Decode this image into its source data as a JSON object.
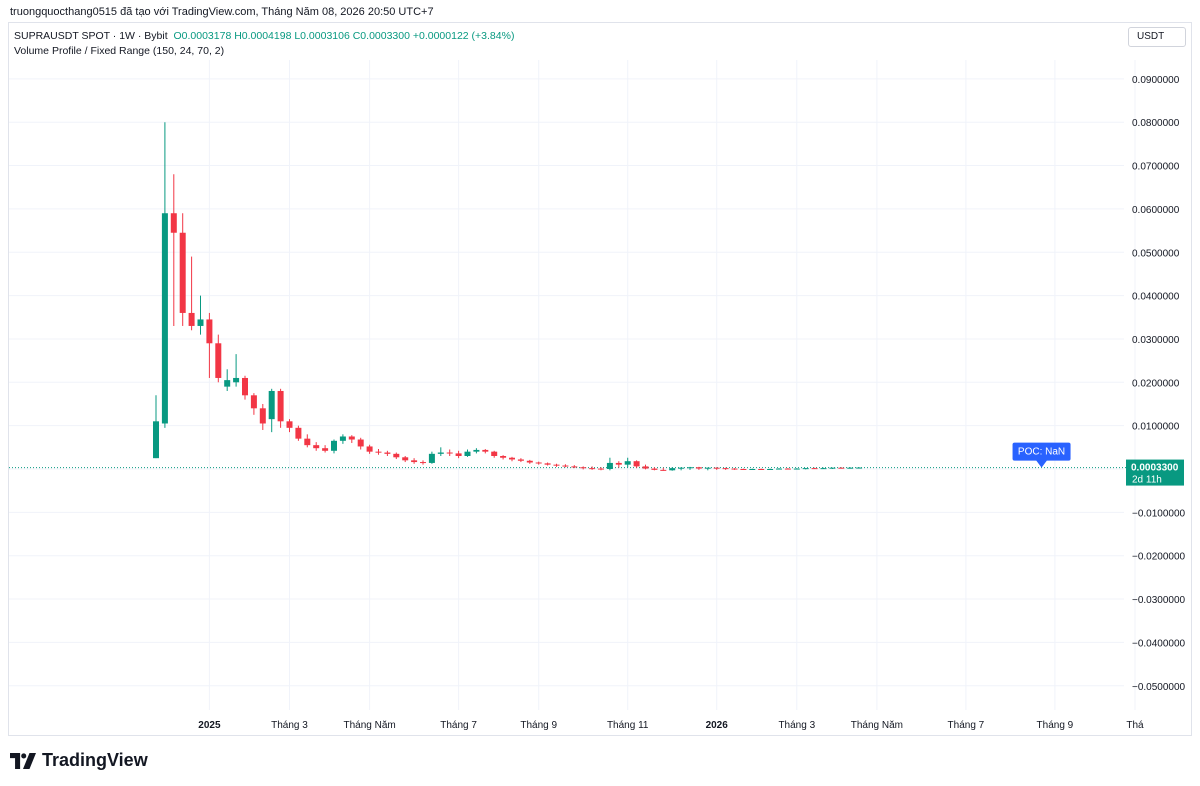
{
  "header": {
    "text": "truongquocthang0515 đã tạo với TradingView.com, Tháng Năm 08, 2026 20:50 UTC+7"
  },
  "legend": {
    "symbol": "SUPRAUSDT SPOT · 1W · Bybit",
    "ohlc": "O0.0003178  H0.0004198  L0.0003106  C0.0003300  +0.0000122 (+3.84%)",
    "indicator": "Volume Profile / Fixed Range (150, 24, 70, 2)"
  },
  "currency": "USDT",
  "footer": {
    "brand": "TradingView"
  },
  "colors": {
    "up": "#089981",
    "down": "#f23645",
    "grid": "#f0f3fa",
    "price_line": "#089981",
    "poc": "#2962ff"
  },
  "chart_data": {
    "type": "candlestick",
    "y_axis": {
      "ticks": [
        0.09,
        0.08,
        0.07,
        0.06,
        0.05,
        0.04,
        0.03,
        0.02,
        0.01,
        0,
        -0.01,
        -0.02,
        -0.03,
        -0.04,
        -0.05
      ],
      "tick_labels": [
        "0.0900000",
        "0.0800000",
        "0.0700000",
        "0.0600000",
        "0.0500000",
        "0.0400000",
        "0.0300000",
        "0.0200000",
        "0.0100000",
        "",
        "−0.0100000",
        "−0.0200000",
        "−0.0300000",
        "−0.0400000",
        "−0.0500000"
      ],
      "position": "right"
    },
    "x_axis": {
      "labels": [
        {
          "text": "2025",
          "bar": 6,
          "bold": true
        },
        {
          "text": "Tháng 3",
          "bar": 15
        },
        {
          "text": "Tháng Năm",
          "bar": 24
        },
        {
          "text": "Tháng 7",
          "bar": 34
        },
        {
          "text": "Tháng 9",
          "bar": 43
        },
        {
          "text": "Tháng 11",
          "bar": 53
        },
        {
          "text": "2026",
          "bar": 63,
          "bold": true
        },
        {
          "text": "Tháng 3",
          "bar": 72
        },
        {
          "text": "Tháng Năm",
          "bar": 81
        },
        {
          "text": "Tháng 7",
          "bar": 91
        },
        {
          "text": "Tháng 9",
          "bar": 101
        },
        {
          "text": "Thá",
          "bar": 110
        }
      ]
    },
    "last_price": {
      "label": "0.0003300",
      "countdown": "2d 11h",
      "value": 0.00033
    },
    "poc_label": "POC: NaN",
    "poc_bar": 99.5,
    "candles": [
      {
        "o": 0.0025,
        "h": 0.017,
        "l": 0.0025,
        "c": 0.011
      },
      {
        "o": 0.0105,
        "h": 0.08,
        "l": 0.0095,
        "c": 0.059
      },
      {
        "o": 0.059,
        "h": 0.068,
        "l": 0.033,
        "c": 0.0545
      },
      {
        "o": 0.0545,
        "h": 0.059,
        "l": 0.033,
        "c": 0.036
      },
      {
        "o": 0.036,
        "h": 0.049,
        "l": 0.032,
        "c": 0.033
      },
      {
        "o": 0.033,
        "h": 0.04,
        "l": 0.031,
        "c": 0.0345
      },
      {
        "o": 0.0345,
        "h": 0.036,
        "l": 0.021,
        "c": 0.029
      },
      {
        "o": 0.029,
        "h": 0.031,
        "l": 0.02,
        "c": 0.021
      },
      {
        "o": 0.019,
        "h": 0.023,
        "l": 0.018,
        "c": 0.0205
      },
      {
        "o": 0.02,
        "h": 0.0265,
        "l": 0.019,
        "c": 0.021
      },
      {
        "o": 0.021,
        "h": 0.0215,
        "l": 0.016,
        "c": 0.017
      },
      {
        "o": 0.017,
        "h": 0.0175,
        "l": 0.0125,
        "c": 0.014
      },
      {
        "o": 0.014,
        "h": 0.015,
        "l": 0.009,
        "c": 0.0105
      },
      {
        "o": 0.0115,
        "h": 0.0185,
        "l": 0.0085,
        "c": 0.018
      },
      {
        "o": 0.018,
        "h": 0.0185,
        "l": 0.0095,
        "c": 0.011
      },
      {
        "o": 0.011,
        "h": 0.0115,
        "l": 0.0085,
        "c": 0.0095
      },
      {
        "o": 0.0095,
        "h": 0.01,
        "l": 0.0065,
        "c": 0.007
      },
      {
        "o": 0.007,
        "h": 0.008,
        "l": 0.005,
        "c": 0.0055
      },
      {
        "o": 0.0055,
        "h": 0.0062,
        "l": 0.0042,
        "c": 0.0048
      },
      {
        "o": 0.0048,
        "h": 0.0055,
        "l": 0.0038,
        "c": 0.0042
      },
      {
        "o": 0.0042,
        "h": 0.0068,
        "l": 0.0036,
        "c": 0.0065
      },
      {
        "o": 0.0065,
        "h": 0.008,
        "l": 0.0058,
        "c": 0.0075
      },
      {
        "o": 0.0075,
        "h": 0.0078,
        "l": 0.006,
        "c": 0.0068
      },
      {
        "o": 0.0068,
        "h": 0.0072,
        "l": 0.0045,
        "c": 0.0052
      },
      {
        "o": 0.0052,
        "h": 0.0056,
        "l": 0.0035,
        "c": 0.004
      },
      {
        "o": 0.004,
        "h": 0.0046,
        "l": 0.0033,
        "c": 0.0038
      },
      {
        "o": 0.0038,
        "h": 0.0042,
        "l": 0.003,
        "c": 0.0035
      },
      {
        "o": 0.0035,
        "h": 0.0038,
        "l": 0.0023,
        "c": 0.0027
      },
      {
        "o": 0.0027,
        "h": 0.003,
        "l": 0.0016,
        "c": 0.002
      },
      {
        "o": 0.002,
        "h": 0.0025,
        "l": 0.0012,
        "c": 0.0016
      },
      {
        "o": 0.0016,
        "h": 0.002,
        "l": 0.001,
        "c": 0.0014
      },
      {
        "o": 0.0014,
        "h": 0.004,
        "l": 0.0012,
        "c": 0.0035
      },
      {
        "o": 0.0035,
        "h": 0.005,
        "l": 0.003,
        "c": 0.0038
      },
      {
        "o": 0.0038,
        "h": 0.0045,
        "l": 0.003,
        "c": 0.0036
      },
      {
        "o": 0.0036,
        "h": 0.0042,
        "l": 0.0025,
        "c": 0.003
      },
      {
        "o": 0.003,
        "h": 0.0045,
        "l": 0.0028,
        "c": 0.004
      },
      {
        "o": 0.004,
        "h": 0.0048,
        "l": 0.0036,
        "c": 0.0044
      },
      {
        "o": 0.0044,
        "h": 0.0046,
        "l": 0.0036,
        "c": 0.004
      },
      {
        "o": 0.004,
        "h": 0.0042,
        "l": 0.0026,
        "c": 0.003
      },
      {
        "o": 0.003,
        "h": 0.0032,
        "l": 0.0022,
        "c": 0.0026
      },
      {
        "o": 0.0026,
        "h": 0.0028,
        "l": 0.0018,
        "c": 0.0022
      },
      {
        "o": 0.0022,
        "h": 0.0025,
        "l": 0.0016,
        "c": 0.0019
      },
      {
        "o": 0.0019,
        "h": 0.0021,
        "l": 0.0012,
        "c": 0.0015
      },
      {
        "o": 0.0015,
        "h": 0.0017,
        "l": 0.001,
        "c": 0.0013
      },
      {
        "o": 0.0013,
        "h": 0.0015,
        "l": 0.0008,
        "c": 0.001
      },
      {
        "o": 0.001,
        "h": 0.0012,
        "l": 0.0005,
        "c": 0.0008
      },
      {
        "o": 0.0008,
        "h": 0.0011,
        "l": 0.0004,
        "c": 0.0006
      },
      {
        "o": 0.0006,
        "h": 0.0009,
        "l": 0.0002,
        "c": 0.0004
      },
      {
        "o": 0.0004,
        "h": 0.0006,
        "l": -0.0001,
        "c": 0.0002
      },
      {
        "o": 0.0002,
        "h": 0.0006,
        "l": -0.0002,
        "c": 0.0001
      },
      {
        "o": 0.0001,
        "h": 0.0004,
        "l": -0.0003,
        "c": 0.0
      },
      {
        "o": 0.0,
        "h": 0.0026,
        "l": -0.0003,
        "c": 0.0014
      },
      {
        "o": 0.0014,
        "h": 0.0018,
        "l": 0.0003,
        "c": 0.001
      },
      {
        "o": 0.001,
        "h": 0.0026,
        "l": 0.0004,
        "c": 0.0018
      },
      {
        "o": 0.0018,
        "h": 0.002,
        "l": 0.0002,
        "c": 0.0006
      },
      {
        "o": 0.0006,
        "h": 0.001,
        "l": -0.0001,
        "c": 0.0001
      },
      {
        "o": 0.0001,
        "h": 0.0004,
        "l": -0.0003,
        "c": -0.0002
      },
      {
        "o": -0.0002,
        "h": 0.0003,
        "l": -0.0004,
        "c": -0.0003
      },
      {
        "o": -0.0003,
        "h": 0.0004,
        "l": -0.0004,
        "c": 0.0002
      },
      {
        "o": 0.0002,
        "h": 0.0004,
        "l": -0.0003,
        "c": 0.0003
      },
      {
        "o": 0.0003,
        "h": 0.0005,
        "l": -0.0002,
        "c": 0.0004
      },
      {
        "o": 0.0004,
        "h": 0.0005,
        "l": -0.0002,
        "c": 0.0001
      },
      {
        "o": 0.0001,
        "h": 0.0003,
        "l": -0.0003,
        "c": 0.0003
      },
      {
        "o": 0.0003,
        "h": 0.0004,
        "l": -0.0002,
        "c": 0.0002
      },
      {
        "o": 0.0002,
        "h": 0.0003,
        "l": -0.0002,
        "c": 0.0001
      },
      {
        "o": 0.0001,
        "h": 0.0002,
        "l": -0.0002,
        "c": 0.0
      },
      {
        "o": 0.0,
        "h": 0.0001,
        "l": -0.0002,
        "c": -0.0001
      },
      {
        "o": -0.0001,
        "h": 0.0001,
        "l": -0.0002,
        "c": 0.0
      },
      {
        "o": 0.0,
        "h": 0.0001,
        "l": -0.0002,
        "c": -0.0001
      },
      {
        "o": -0.0001,
        "h": 0.0001,
        "l": -0.0002,
        "c": 0.0
      },
      {
        "o": 0.0,
        "h": 0.0002,
        "l": -0.0001,
        "c": 0.0001
      },
      {
        "o": 0.0001,
        "h": 0.0002,
        "l": -0.0001,
        "c": 0.0
      },
      {
        "o": 0.0,
        "h": 0.0002,
        "l": -0.0001,
        "c": 0.0001
      },
      {
        "o": 0.0001,
        "h": 0.0002,
        "l": -0.0001,
        "c": 0.0002
      },
      {
        "o": 0.0002,
        "h": 0.0003,
        "l": 0.0,
        "c": 0.0001
      },
      {
        "o": 0.0001,
        "h": 0.0003,
        "l": 0.0,
        "c": 0.0002
      },
      {
        "o": 0.0002,
        "h": 0.0003,
        "l": 0.0,
        "c": 0.0003
      },
      {
        "o": 0.0003,
        "h": 0.0004,
        "l": 0.0001,
        "c": 0.0002
      },
      {
        "o": 0.0002,
        "h": 0.0004,
        "l": 0.0001,
        "c": 0.0003
      },
      {
        "o": 0.0003178,
        "h": 0.0004198,
        "l": 0.0003106,
        "c": 0.00033
      }
    ]
  }
}
